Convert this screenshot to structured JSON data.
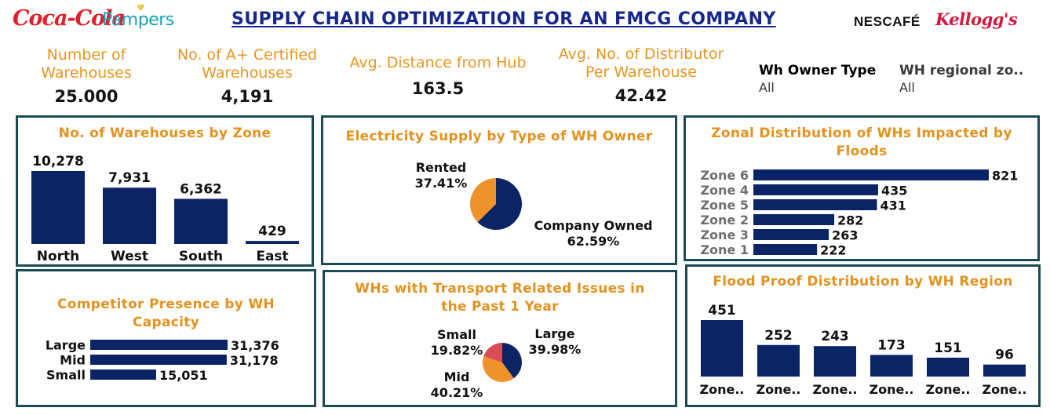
{
  "header": {
    "title": "SUPPLY CHAIN OPTIMIZATION FOR AN FMCG COMPANY",
    "logos": [
      "Coca-Cola",
      "Pampers",
      "NESCAFÉ",
      "Kellogg's"
    ]
  },
  "kpis": [
    {
      "label_line1": "Number of",
      "label_line2": "Warehouses",
      "value": "25.000"
    },
    {
      "label_line1": "No. of A+ Certified",
      "label_line2": "Warehouses",
      "value": "4,191"
    },
    {
      "label_line1": "Avg. Distance from Hub",
      "label_line2": "",
      "value": "163.5"
    },
    {
      "label_line1": "Avg. No. of Distributor",
      "label_line2": "Per Warehouse",
      "value": "42.42"
    }
  ],
  "slicers": [
    {
      "title": "Wh Owner Type",
      "value": "All"
    },
    {
      "title": "WH regional zo..",
      "value": "All"
    }
  ],
  "colors": {
    "navy": "#0b2466",
    "orange": "#f0922b",
    "red": "#d94b55",
    "title_orange": "#e3921f",
    "border": "#1c4a55",
    "kpi_orange": "#e9951f"
  },
  "charts": {
    "zone": {
      "title": "No. of Warehouses by Zone",
      "chart_data": {
        "type": "bar",
        "categories": [
          "North",
          "West",
          "South",
          "East"
        ],
        "values": [
          10278,
          7931,
          6362,
          429
        ],
        "value_labels": [
          "10,278",
          "7,931",
          "6,362",
          "429"
        ],
        "ylim": [
          0,
          10278
        ]
      }
    },
    "electricity": {
      "title": "Electricity Supply by Type of WH Owner",
      "chart_data": {
        "type": "pie",
        "slices": [
          {
            "label": "Company Owned",
            "pct": "62.59%",
            "value": 62.59,
            "color": "#0b2466"
          },
          {
            "label": "Rented",
            "pct": "37.41%",
            "value": 37.41,
            "color": "#f0922b"
          }
        ]
      }
    },
    "floods": {
      "title_line1": "Zonal Distribution of WHs Impacted by",
      "title_line2": "Floods",
      "chart_data": {
        "type": "bar",
        "orientation": "horizontal",
        "categories": [
          "Zone 6",
          "Zone 4",
          "Zone 5",
          "Zone 2",
          "Zone 3",
          "Zone 1"
        ],
        "values": [
          821,
          435,
          431,
          282,
          263,
          222
        ],
        "value_labels": [
          "821",
          "435",
          "431",
          "282",
          "263",
          "222"
        ],
        "xlim": [
          0,
          821
        ]
      }
    },
    "competitor": {
      "title_line1": "Competitor Presence by WH",
      "title_line2": "Capacity",
      "chart_data": {
        "type": "bar",
        "orientation": "horizontal",
        "categories": [
          "Large",
          "Mid",
          "Small"
        ],
        "values": [
          31376,
          31178,
          15051
        ],
        "value_labels": [
          "31,376",
          "31,178",
          "15,051"
        ],
        "xlim": [
          0,
          31376
        ]
      }
    },
    "transport": {
      "title_line1": "WHs with Transport Related Issues in",
      "title_line2": "the Past 1 Year",
      "chart_data": {
        "type": "pie",
        "slices": [
          {
            "label": "Large",
            "pct": "39.98%",
            "value": 39.98,
            "color": "#0b2466"
          },
          {
            "label": "Mid",
            "pct": "40.21%",
            "value": 40.21,
            "color": "#f0922b"
          },
          {
            "label": "Small",
            "pct": "19.82%",
            "value": 19.82,
            "color": "#d94b55"
          }
        ]
      }
    },
    "floodproof": {
      "title": "Flood Proof Distribution by WH Region",
      "chart_data": {
        "type": "bar",
        "categories": [
          "Zone..",
          "Zone..",
          "Zone..",
          "Zone..",
          "Zone..",
          "Zone.."
        ],
        "values": [
          451,
          252,
          243,
          173,
          151,
          96
        ],
        "value_labels": [
          "451",
          "252",
          "243",
          "173",
          "151",
          "96"
        ],
        "ylim": [
          0,
          451
        ]
      }
    }
  }
}
